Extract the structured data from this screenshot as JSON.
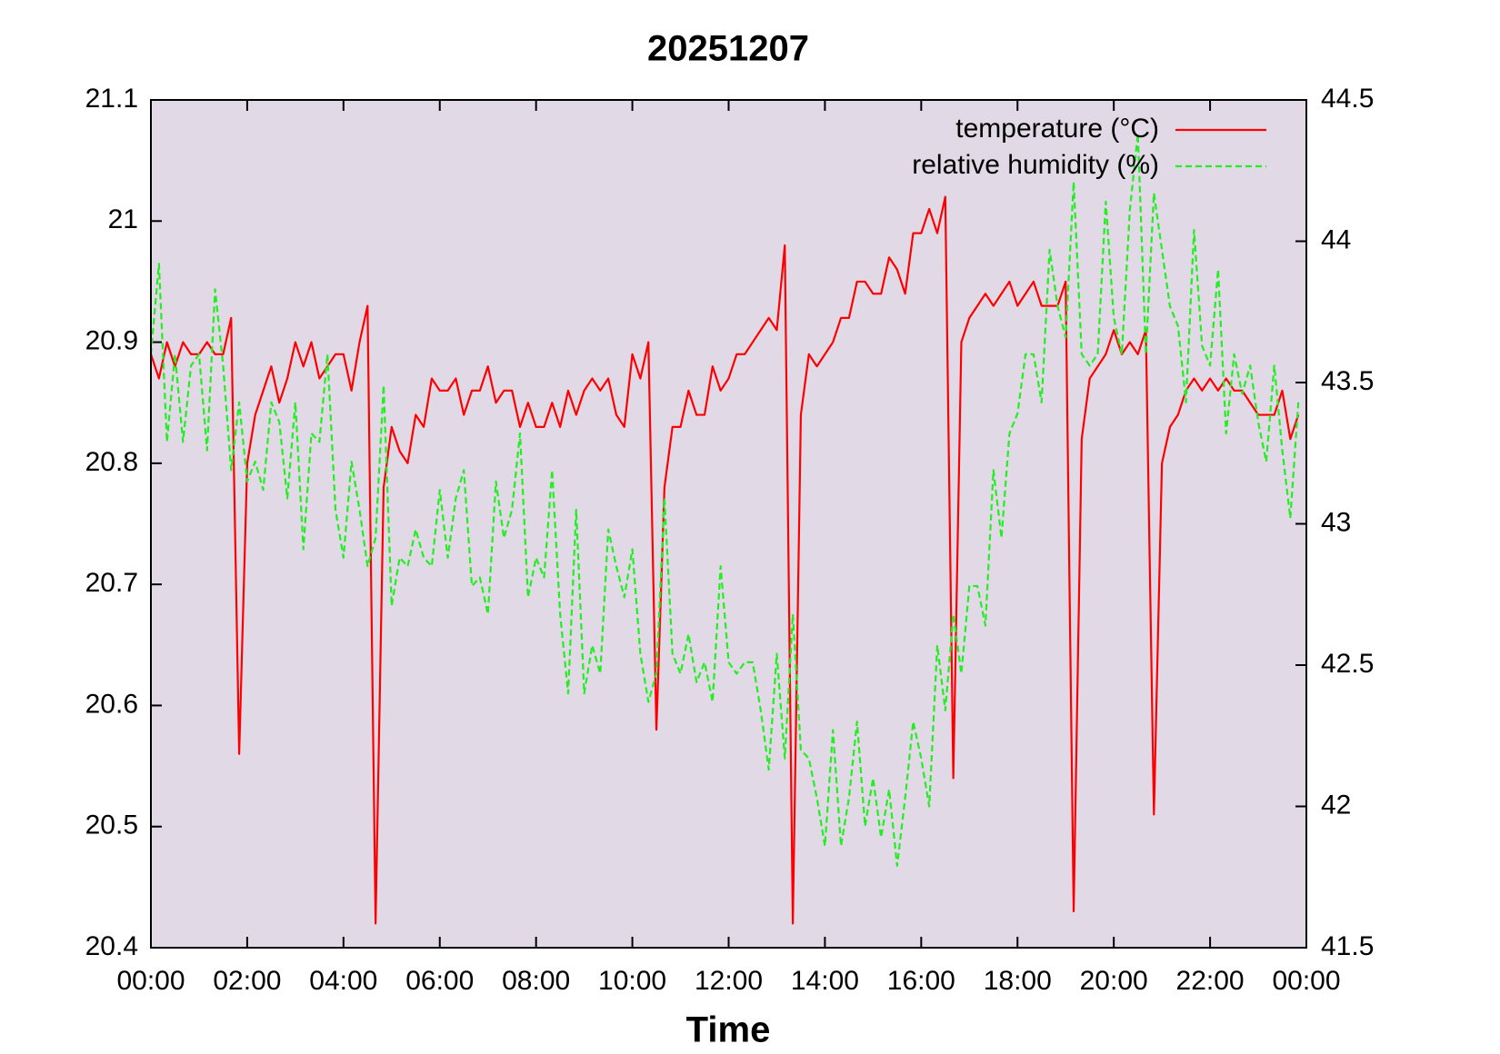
{
  "chart_data": {
    "type": "line",
    "title": "20251207",
    "xlabel": "Time",
    "x": [
      0,
      10,
      20,
      30,
      40,
      50,
      60,
      70,
      80,
      90,
      100,
      110,
      120,
      130,
      140,
      150,
      160,
      170,
      180,
      190,
      200,
      210,
      220,
      230,
      240,
      250,
      260,
      270,
      280,
      290,
      300,
      310,
      320,
      330,
      340,
      350,
      360,
      370,
      380,
      390,
      400,
      410,
      420,
      430,
      440,
      450,
      460,
      470,
      480,
      490,
      500,
      510,
      520,
      530,
      540,
      550,
      560,
      570,
      580,
      590,
      600,
      610,
      620,
      630,
      640,
      650,
      660,
      670,
      680,
      690,
      700,
      710,
      720,
      730,
      740,
      750,
      760,
      770,
      780,
      790,
      800,
      810,
      820,
      830,
      840,
      850,
      860,
      870,
      880,
      890,
      900,
      910,
      920,
      930,
      940,
      950,
      960,
      970,
      980,
      990,
      1000,
      1010,
      1020,
      1030,
      1040,
      1050,
      1060,
      1070,
      1080,
      1090,
      1100,
      1110,
      1120,
      1130,
      1140,
      1150,
      1160,
      1170,
      1180,
      1190,
      1200,
      1210,
      1220,
      1230,
      1240,
      1250,
      1260,
      1270,
      1280,
      1290,
      1300,
      1310,
      1320,
      1330,
      1340,
      1350,
      1360,
      1370,
      1380,
      1390,
      1400,
      1410,
      1420,
      1430
    ],
    "series": [
      {
        "name": "temperature (°C)",
        "color": "#ff0000",
        "dash": false,
        "axis": "y",
        "values": [
          20.89,
          20.87,
          20.9,
          20.88,
          20.9,
          20.89,
          20.89,
          20.9,
          20.89,
          20.89,
          20.92,
          20.56,
          20.8,
          20.84,
          20.86,
          20.88,
          20.85,
          20.87,
          20.9,
          20.88,
          20.9,
          20.87,
          20.88,
          20.89,
          20.89,
          20.86,
          20.9,
          20.93,
          20.42,
          20.78,
          20.83,
          20.81,
          20.8,
          20.84,
          20.83,
          20.87,
          20.86,
          20.86,
          20.87,
          20.84,
          20.86,
          20.86,
          20.88,
          20.85,
          20.86,
          20.86,
          20.83,
          20.85,
          20.83,
          20.83,
          20.85,
          20.83,
          20.86,
          20.84,
          20.86,
          20.87,
          20.86,
          20.87,
          20.84,
          20.83,
          20.89,
          20.87,
          20.9,
          20.58,
          20.78,
          20.83,
          20.83,
          20.86,
          20.84,
          20.84,
          20.88,
          20.86,
          20.87,
          20.89,
          20.89,
          20.9,
          20.91,
          20.92,
          20.91,
          20.98,
          20.42,
          20.84,
          20.89,
          20.88,
          20.89,
          20.9,
          20.92,
          20.92,
          20.95,
          20.95,
          20.94,
          20.94,
          20.97,
          20.96,
          20.94,
          20.99,
          20.99,
          21.01,
          20.99,
          21.02,
          20.54,
          20.9,
          20.92,
          20.93,
          20.94,
          20.93,
          20.94,
          20.95,
          20.93,
          20.94,
          20.95,
          20.93,
          20.93,
          20.93,
          20.95,
          20.43,
          20.82,
          20.87,
          20.88,
          20.89,
          20.91,
          20.89,
          20.9,
          20.89,
          20.91,
          20.51,
          20.8,
          20.83,
          20.84,
          20.86,
          20.87,
          20.86,
          20.87,
          20.86,
          20.87,
          20.86,
          20.86,
          20.85,
          20.84,
          20.84,
          20.84,
          20.86,
          20.82,
          20.84
        ]
      },
      {
        "name": "relative humidity (%)",
        "color": "#22ee22",
        "dash": true,
        "axis": "y2",
        "values": [
          43.6,
          43.92,
          43.29,
          43.6,
          43.29,
          43.56,
          43.6,
          43.26,
          43.83,
          43.56,
          43.19,
          43.43,
          43.15,
          43.22,
          43.12,
          43.43,
          43.36,
          43.09,
          43.43,
          42.91,
          43.32,
          43.29,
          43.6,
          43.05,
          42.88,
          43.22,
          43.05,
          42.85,
          42.95,
          43.49,
          42.71,
          42.88,
          42.85,
          42.98,
          42.88,
          42.85,
          43.12,
          42.88,
          43.09,
          43.19,
          42.78,
          42.81,
          42.68,
          43.15,
          42.95,
          43.05,
          43.32,
          42.74,
          42.88,
          42.81,
          43.19,
          42.68,
          42.4,
          43.05,
          42.4,
          42.57,
          42.47,
          42.98,
          42.85,
          42.74,
          42.91,
          42.54,
          42.37,
          42.47,
          43.09,
          42.54,
          42.47,
          42.61,
          42.44,
          42.51,
          42.37,
          42.85,
          42.51,
          42.47,
          42.51,
          42.51,
          42.34,
          42.13,
          42.54,
          42.17,
          42.68,
          42.2,
          42.17,
          42.03,
          41.86,
          42.27,
          41.86,
          42.03,
          42.3,
          41.93,
          42.1,
          41.89,
          42.06,
          41.79,
          42.03,
          42.3,
          42.17,
          42.0,
          42.57,
          42.34,
          42.68,
          42.47,
          42.78,
          42.78,
          42.64,
          43.19,
          42.95,
          43.32,
          43.39,
          43.6,
          43.6,
          43.43,
          43.97,
          43.77,
          43.66,
          44.21,
          43.6,
          43.56,
          43.6,
          44.14,
          43.73,
          43.6,
          44.11,
          44.38,
          43.6,
          44.17,
          43.97,
          43.77,
          43.7,
          43.43,
          44.04,
          43.63,
          43.56,
          43.9,
          43.32,
          43.6,
          43.46,
          43.56,
          43.36,
          43.22,
          43.56,
          43.26,
          43.02,
          43.43
        ]
      }
    ],
    "xlim": [
      0,
      1440
    ],
    "xticks": [
      {
        "value": 0,
        "label": "00:00"
      },
      {
        "value": 120,
        "label": "02:00"
      },
      {
        "value": 240,
        "label": "04:00"
      },
      {
        "value": 360,
        "label": "06:00"
      },
      {
        "value": 480,
        "label": "08:00"
      },
      {
        "value": 600,
        "label": "10:00"
      },
      {
        "value": 720,
        "label": "12:00"
      },
      {
        "value": 840,
        "label": "14:00"
      },
      {
        "value": 960,
        "label": "16:00"
      },
      {
        "value": 1080,
        "label": "18:00"
      },
      {
        "value": 1200,
        "label": "20:00"
      },
      {
        "value": 1320,
        "label": "22:00"
      },
      {
        "value": 1440,
        "label": "00:00"
      }
    ],
    "ylim": [
      20.4,
      21.1
    ],
    "yticks": [
      20.4,
      20.5,
      20.6,
      20.7,
      20.8,
      20.9,
      21,
      21.1
    ],
    "y2lim": [
      41.5,
      44.5
    ],
    "y2ticks": [
      41.5,
      42,
      42.5,
      43,
      43.5,
      44,
      44.5
    ],
    "legend": "top-right",
    "background": "#e1d9e5"
  }
}
